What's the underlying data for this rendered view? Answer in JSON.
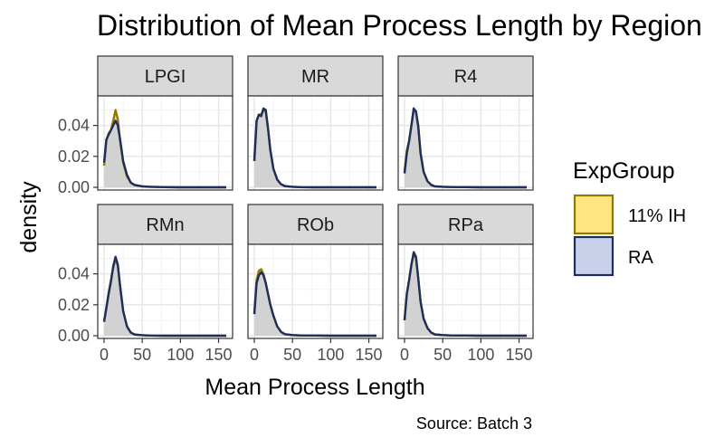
{
  "chart_data": {
    "type": "area",
    "title": "Distribution of Mean Process Length by Region",
    "xlabel": "Mean Process Length",
    "ylabel": "density",
    "caption": "Source: Batch 3",
    "xlim": [
      0,
      160
    ],
    "ylim": [
      0,
      0.055
    ],
    "x_ticks": [
      0,
      50,
      100,
      150
    ],
    "x_tick_labels": [
      "0",
      "50",
      "100",
      "150"
    ],
    "y_ticks": [
      0,
      0.02,
      0.04
    ],
    "y_tick_labels": [
      "0.00",
      "0.02",
      "0.04"
    ],
    "grid": true,
    "legend": {
      "title": "ExpGroup",
      "position": "right",
      "entries": [
        {
          "label": "11% IH",
          "fill": "#ffe680",
          "stroke": "#8f7a00"
        },
        {
          "label": "RA",
          "fill": "#c9d1ea",
          "stroke": "#1f2d5c"
        }
      ]
    },
    "x": [
      0,
      3,
      6,
      9,
      12,
      15,
      18,
      21,
      25,
      30,
      35,
      40,
      50,
      60,
      80,
      100,
      130,
      160
    ],
    "panels": [
      {
        "region": "LPGI",
        "series": [
          {
            "name": "11% IH",
            "values": [
              0.014,
              0.03,
              0.035,
              0.037,
              0.043,
              0.05,
              0.044,
              0.03,
              0.016,
              0.007,
              0.003,
              0.0015,
              0.0006,
              0.0003,
              0.0001,
              0,
              0,
              0
            ]
          },
          {
            "name": "RA",
            "values": [
              0.016,
              0.031,
              0.034,
              0.037,
              0.04,
              0.043,
              0.04,
              0.031,
              0.017,
              0.008,
              0.003,
              0.0015,
              0.0006,
              0.0003,
              0.0001,
              0,
              0,
              0
            ]
          }
        ]
      },
      {
        "region": "MR",
        "series": [
          {
            "name": "11% IH",
            "values": [
              0.017,
              0.043,
              0.047,
              0.047,
              0.05,
              0.049,
              0.038,
              0.024,
              0.012,
              0.005,
              0.002,
              0.0008,
              0.0003,
              0.0001,
              0,
              0,
              0,
              0
            ]
          },
          {
            "name": "RA",
            "values": [
              0.017,
              0.043,
              0.047,
              0.046,
              0.051,
              0.05,
              0.038,
              0.024,
              0.012,
              0.005,
              0.002,
              0.0008,
              0.0003,
              0.0001,
              0,
              0,
              0,
              0
            ]
          }
        ]
      },
      {
        "region": "R4",
        "series": [
          {
            "name": "11% IH",
            "values": [
              0.01,
              0.024,
              0.03,
              0.04,
              0.05,
              0.049,
              0.04,
              0.022,
              0.01,
              0.004,
              0.0015,
              0.0006,
              0.0003,
              0.0002,
              0.0001,
              0,
              0,
              0
            ]
          },
          {
            "name": "RA",
            "values": [
              0.009,
              0.022,
              0.03,
              0.04,
              0.051,
              0.049,
              0.039,
              0.022,
              0.01,
              0.004,
              0.0015,
              0.0006,
              0.0003,
              0.0002,
              0.0001,
              0,
              0,
              0
            ]
          }
        ]
      },
      {
        "region": "RMn",
        "series": [
          {
            "name": "11% IH",
            "values": [
              0.009,
              0.018,
              0.028,
              0.036,
              0.044,
              0.05,
              0.045,
              0.032,
              0.016,
              0.006,
              0.002,
              0.0008,
              0.0003,
              0.0001,
              0,
              0,
              0,
              0
            ]
          },
          {
            "name": "RA",
            "values": [
              0.009,
              0.018,
              0.027,
              0.035,
              0.045,
              0.051,
              0.046,
              0.032,
              0.016,
              0.006,
              0.002,
              0.0008,
              0.0003,
              0.0001,
              0,
              0,
              0,
              0
            ]
          }
        ]
      },
      {
        "region": "ROb",
        "series": [
          {
            "name": "11% IH",
            "values": [
              0.014,
              0.036,
              0.042,
              0.043,
              0.04,
              0.034,
              0.027,
              0.02,
              0.013,
              0.006,
              0.0025,
              0.001,
              0.0004,
              0.0002,
              0.0001,
              0,
              0,
              0
            ]
          },
          {
            "name": "RA",
            "values": [
              0.014,
              0.034,
              0.039,
              0.041,
              0.039,
              0.034,
              0.027,
              0.02,
              0.013,
              0.006,
              0.0025,
              0.001,
              0.0004,
              0.0002,
              0.0001,
              0,
              0,
              0
            ]
          }
        ]
      },
      {
        "region": "RPa",
        "series": [
          {
            "name": "11% IH",
            "values": [
              0.01,
              0.027,
              0.036,
              0.046,
              0.053,
              0.05,
              0.037,
              0.022,
              0.011,
              0.005,
              0.002,
              0.0008,
              0.0004,
              0.0002,
              0.0001,
              0,
              0,
              0
            ]
          },
          {
            "name": "RA",
            "values": [
              0.01,
              0.027,
              0.036,
              0.046,
              0.054,
              0.051,
              0.037,
              0.022,
              0.011,
              0.005,
              0.002,
              0.0008,
              0.0004,
              0.0002,
              0.0001,
              0,
              0,
              0
            ]
          }
        ]
      }
    ]
  }
}
